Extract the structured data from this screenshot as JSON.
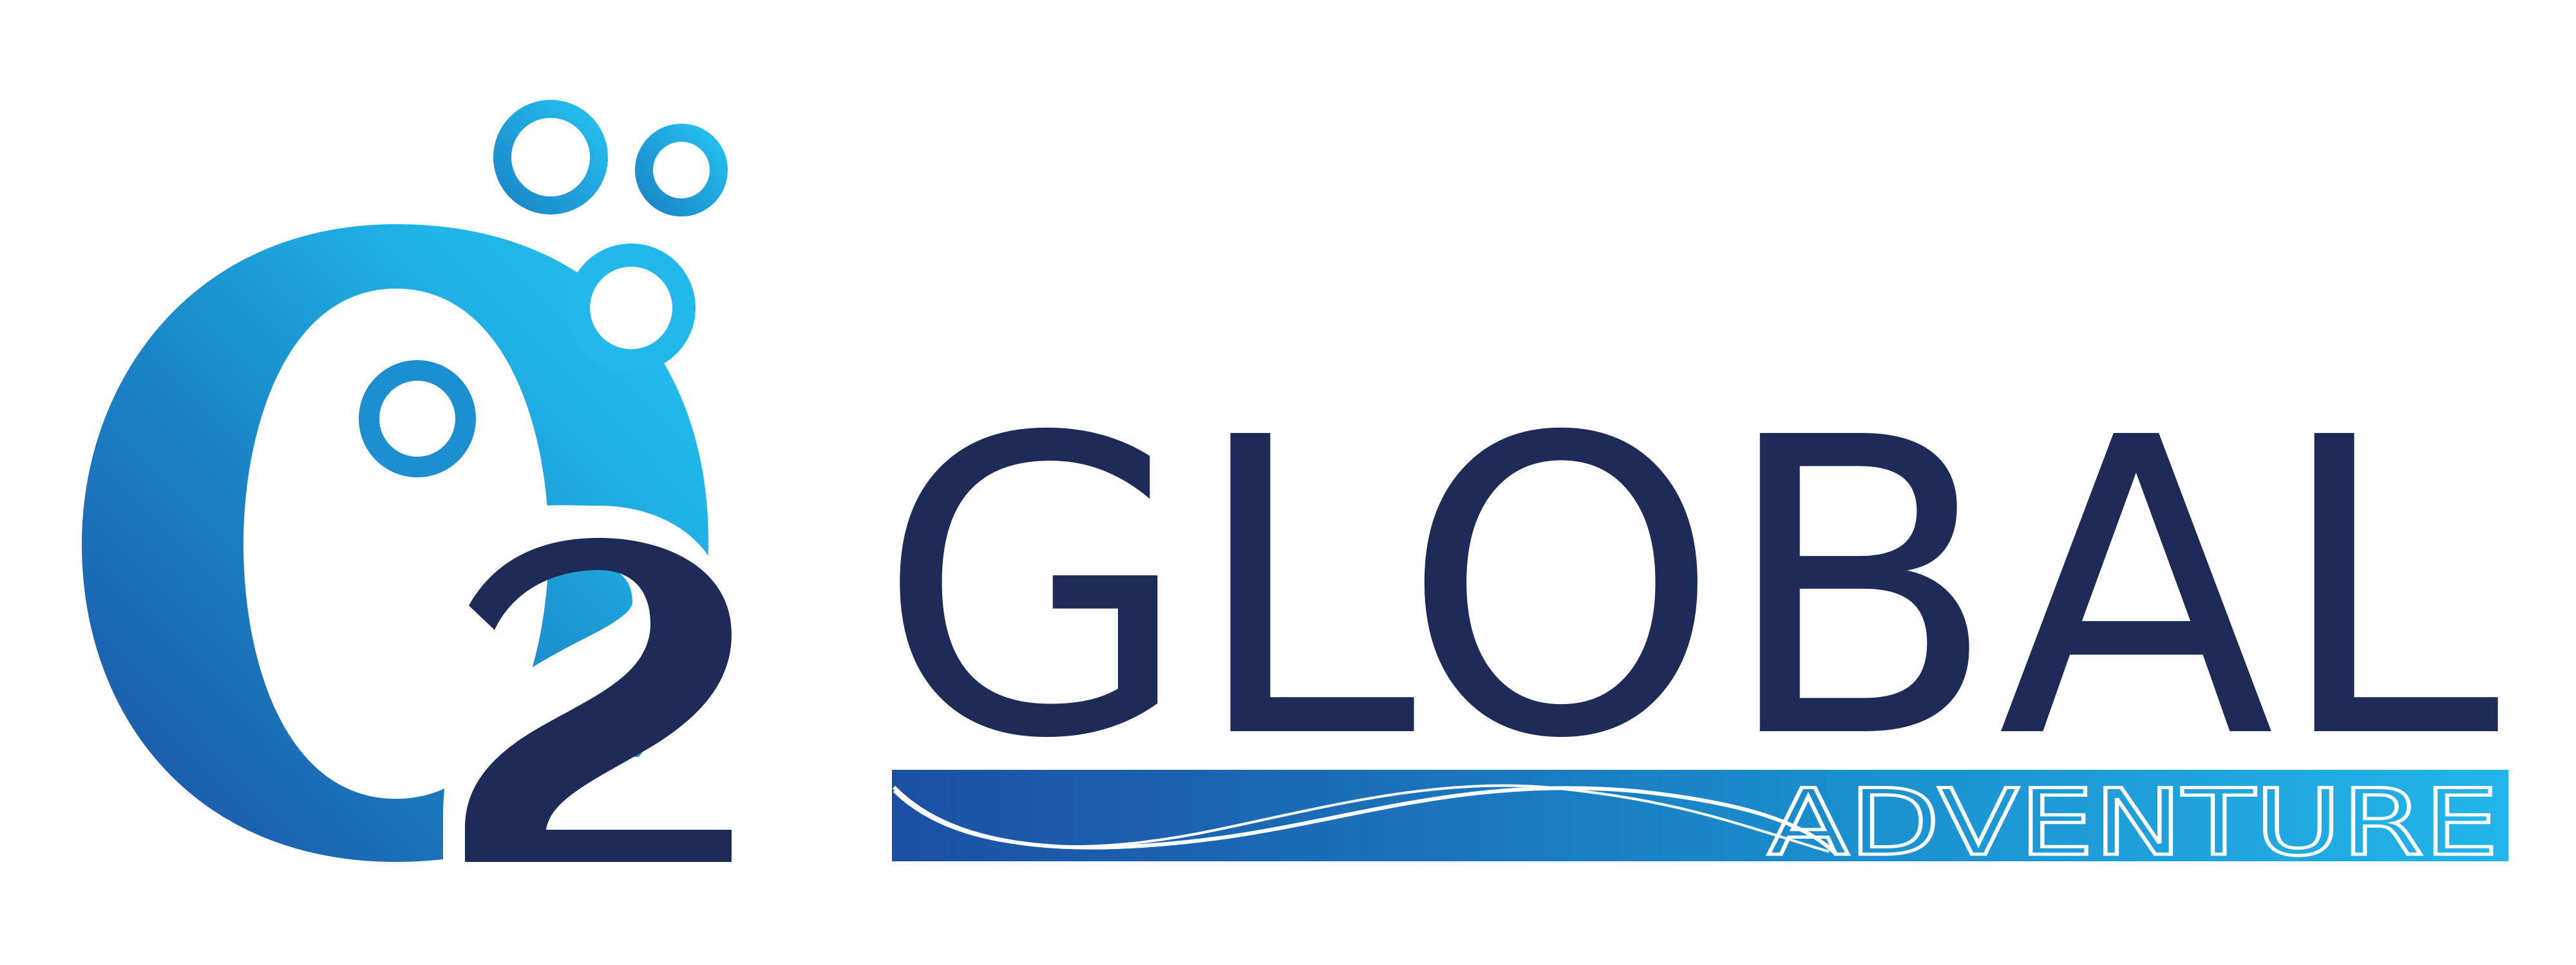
{
  "logo": {
    "mark_text": "O2",
    "wordmark": "GLOBAL",
    "tagline": "ADVENTURE"
  },
  "colors": {
    "navy": "#1e2b58",
    "cyan": "#26c1f0",
    "blue_dark": "#1c4fa3",
    "blue_mid": "#1a86c8",
    "white": "#ffffff"
  },
  "icons": {
    "logo_mark": "o2-bubbles-icon",
    "banner_wave": "wave-icon"
  }
}
